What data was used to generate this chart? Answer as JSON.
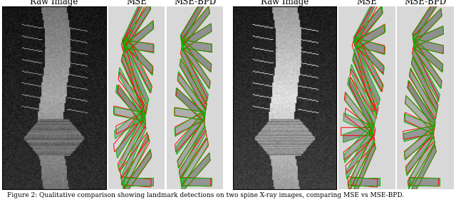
{
  "background_color": "#ffffff",
  "left_group_labels": [
    "Raw Image",
    "MSE",
    "MSE-BPD"
  ],
  "right_group_labels": [
    "Raw Image",
    "MSE",
    "MSE-BPD"
  ],
  "caption": "Figure 2: Qualitative comparison showing landmark detections on two spine X-ray images, comparing MSE vs MSE-BPD.",
  "label_fontsize": 6.5,
  "col_label_fontsize": 8.5,
  "n_vertebrae": 18,
  "color_gt": "#00bb00",
  "color_pred": "#ff0000",
  "panel_bg": "#d8d8d8"
}
